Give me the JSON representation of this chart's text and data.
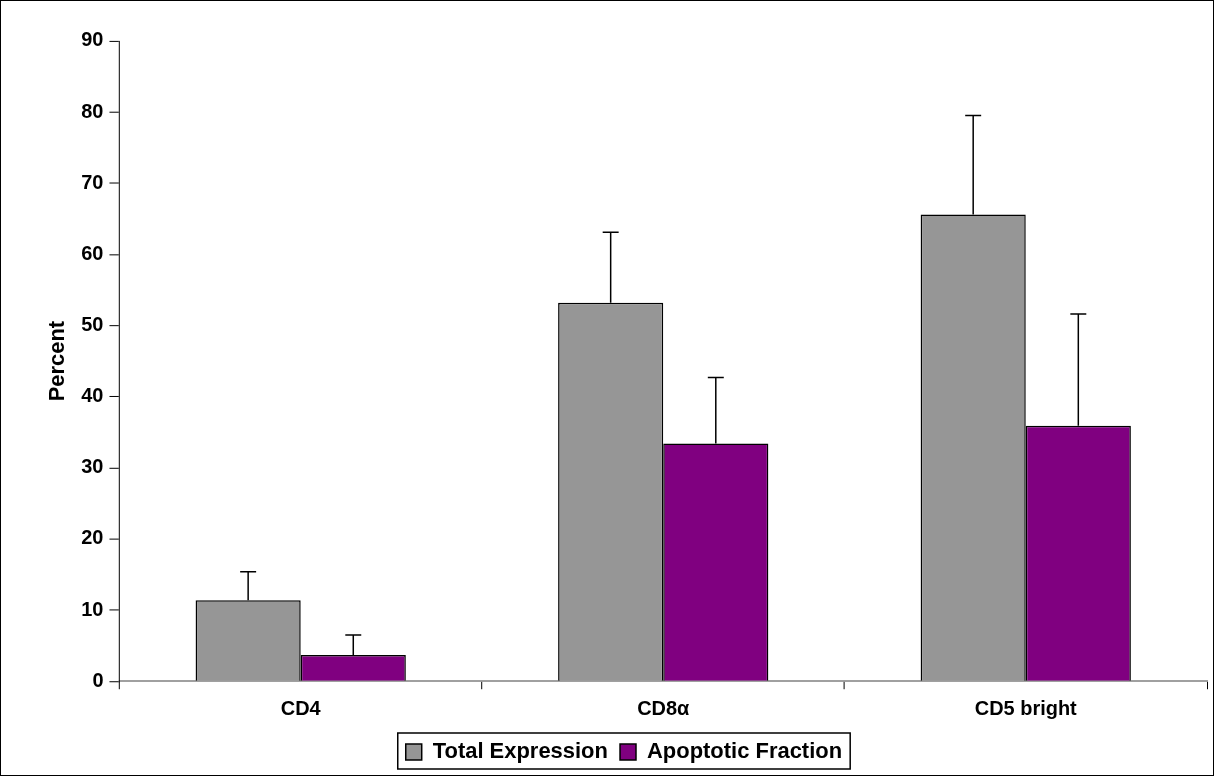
{
  "chart_data": {
    "type": "bar",
    "ylabel": "Percent",
    "categories": [
      "CD4",
      "CD8α",
      "CD5 bright"
    ],
    "series": [
      {
        "name": "Total Expression",
        "color": "#969696",
        "values": [
          11.4,
          53.2,
          65.6
        ],
        "errors": [
          [
            11.4,
            15.4
          ],
          [
            53.2,
            63.1
          ],
          [
            65.6,
            79.5
          ]
        ]
      },
      {
        "name": "Apoptotic Fraction",
        "color": "#800080",
        "values": [
          3.7,
          33.4,
          35.9
        ],
        "errors": [
          [
            3.7,
            6.5
          ],
          [
            33.4,
            42.7
          ],
          [
            35.9,
            51.6
          ]
        ]
      }
    ],
    "ylim": [
      0,
      90
    ],
    "yticks": [
      0,
      10,
      20,
      30,
      40,
      50,
      60,
      70,
      80,
      90
    ],
    "legend": "bottom"
  }
}
